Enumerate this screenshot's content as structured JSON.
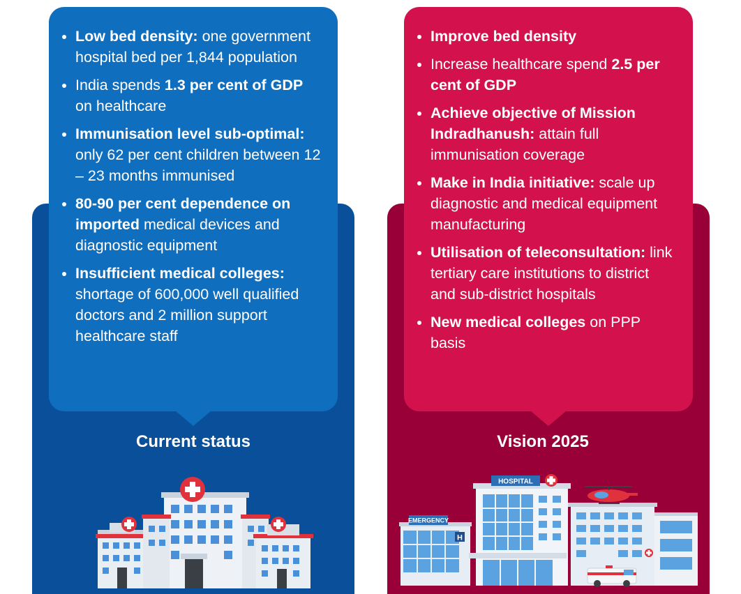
{
  "colors": {
    "left_outer": "#0a4f99",
    "left_inner": "#0f6ebd",
    "right_outer": "#980037",
    "right_inner": "#d3124d"
  },
  "current_status": {
    "caption": "Current status",
    "items": [
      {
        "bold": "Low bed density:",
        "text": " one government hospital bed per 1,844 population"
      },
      {
        "pre": "India spends ",
        "bold": "1.3 per cent of GDP",
        "text": " on healthcare"
      },
      {
        "bold": "Immunisation level sub-optimal:",
        "text": " only 62 per cent children between 12 – 23 months immunised"
      },
      {
        "bold": "80-90 per cent dependence on imported",
        "text": " medical devices and diagnostic equipment"
      },
      {
        "bold": "Insufficient medical colleges:",
        "text": " shortage of 600,000 well qualified doctors and 2 million support healthcare staff"
      }
    ]
  },
  "vision_2025": {
    "caption": "Vision 2025",
    "items": [
      {
        "bold": "Improve bed density",
        "text": ""
      },
      {
        "pre": "Increase healthcare spend ",
        "bold": "2.5 per cent of GDP",
        "text": ""
      },
      {
        "bold": "Achieve objective of Mission Indradhanush:",
        "text": " attain full immunisation coverage"
      },
      {
        "bold": "Make in India initiative:",
        "text": " scale up diagnostic and medical equipment manufacturing"
      },
      {
        "bold": "Utilisation of teleconsultation:",
        "text": " link tertiary care institutions to district and sub-district hospitals"
      },
      {
        "bold": "New medical colleges",
        "text": " on PPP basis"
      }
    ]
  },
  "illustration": {
    "hospital_sign": "HOSPITAL",
    "emergency_sign": "EMERGENCY",
    "h_sign": "H"
  }
}
